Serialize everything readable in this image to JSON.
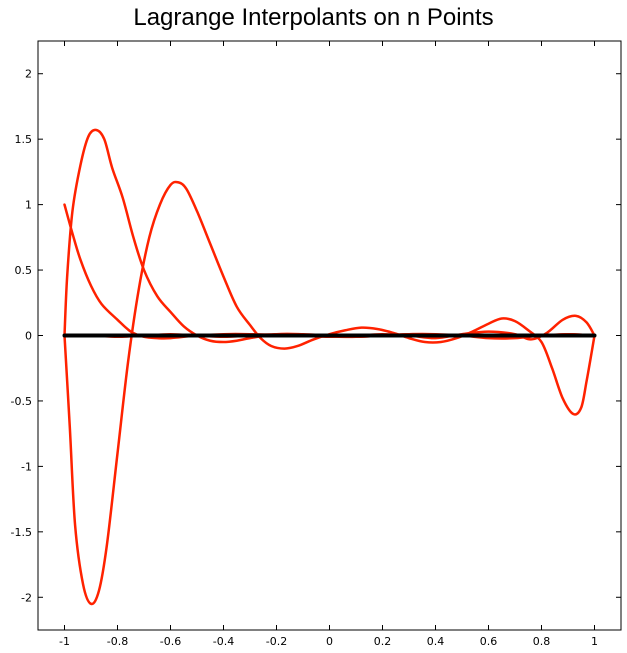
{
  "chart_data": {
    "type": "line",
    "title": "Lagrange Interpolants on n Points",
    "xlabel": "",
    "ylabel": "",
    "xlim": [
      -1.1,
      1.1
    ],
    "ylim": [
      -2.25,
      2.25
    ],
    "grid": false,
    "legend": "none",
    "x_ticks": [
      -1,
      -0.8,
      -0.6,
      -0.4,
      -0.2,
      0,
      0.2,
      0.4,
      0.6,
      0.8,
      1
    ],
    "x_tick_labels": [
      "-1",
      "-0.8",
      "-0.6",
      "-0.4",
      "-0.2",
      "0",
      "0.2",
      "0.4",
      "0.6",
      "0.8",
      "1"
    ],
    "y_ticks": [
      2,
      1.5,
      1,
      0.5,
      0,
      -0.5,
      -1,
      -1.5,
      -2
    ],
    "y_tick_labels": [
      "2",
      "1.5",
      "1",
      "0.5",
      "0",
      "-0.5",
      "-1",
      "-1.5",
      "-2"
    ],
    "series": [
      {
        "color": "#ff2200",
        "points": [
          [
            -1,
            1
          ],
          [
            -0.97,
            0.78
          ],
          [
            -0.94,
            0.58
          ],
          [
            -0.9,
            0.38
          ],
          [
            -0.86,
            0.24
          ],
          [
            -0.8,
            0.12
          ],
          [
            -0.75,
            0.03
          ],
          [
            -0.7,
            -0.01
          ],
          [
            -0.65,
            -0.02
          ],
          [
            -0.6,
            -0.02
          ],
          [
            -0.5,
            0
          ],
          [
            -0.4,
            0.01
          ],
          [
            -0.3,
            0.01
          ],
          [
            -0.1,
            0
          ],
          [
            0.1,
            -0.01
          ],
          [
            0.3,
            0.01
          ],
          [
            0.5,
            0
          ],
          [
            0.7,
            -0.01
          ],
          [
            0.8,
            0
          ],
          [
            0.9,
            0.01
          ],
          [
            1,
            0
          ]
        ]
      },
      {
        "color": "#ff2200",
        "points": [
          [
            -1,
            0
          ],
          [
            -0.99,
            0.45
          ],
          [
            -0.97,
            0.95
          ],
          [
            -0.94,
            1.3
          ],
          [
            -0.91,
            1.52
          ],
          [
            -0.88,
            1.57
          ],
          [
            -0.85,
            1.5
          ],
          [
            -0.82,
            1.28
          ],
          [
            -0.78,
            1.05
          ],
          [
            -0.74,
            0.75
          ],
          [
            -0.7,
            0.5
          ],
          [
            -0.65,
            0.3
          ],
          [
            -0.6,
            0.18
          ],
          [
            -0.55,
            0.07
          ],
          [
            -0.5,
            0
          ],
          [
            -0.45,
            -0.04
          ],
          [
            -0.4,
            -0.05
          ],
          [
            -0.35,
            -0.04
          ],
          [
            -0.3,
            -0.02
          ],
          [
            -0.2,
            0.01
          ],
          [
            -0.1,
            0.01
          ],
          [
            0,
            0
          ],
          [
            0.1,
            -0.01
          ],
          [
            0.2,
            0
          ],
          [
            0.3,
            0.01
          ],
          [
            0.4,
            0.01
          ],
          [
            0.5,
            0
          ],
          [
            0.6,
            -0.02
          ],
          [
            0.7,
            -0.02
          ],
          [
            0.8,
            0
          ],
          [
            0.9,
            0.01
          ],
          [
            1,
            0
          ]
        ]
      },
      {
        "color": "#ff2200",
        "points": [
          [
            -1,
            0
          ],
          [
            -0.98,
            -0.7
          ],
          [
            -0.96,
            -1.45
          ],
          [
            -0.93,
            -1.9
          ],
          [
            -0.9,
            -2.05
          ],
          [
            -0.87,
            -1.95
          ],
          [
            -0.84,
            -1.6
          ],
          [
            -0.8,
            -0.9
          ],
          [
            -0.76,
            -0.2
          ],
          [
            -0.72,
            0.35
          ],
          [
            -0.68,
            0.75
          ],
          [
            -0.64,
            1.0
          ],
          [
            -0.6,
            1.15
          ],
          [
            -0.57,
            1.17
          ],
          [
            -0.54,
            1.12
          ],
          [
            -0.5,
            0.95
          ],
          [
            -0.45,
            0.7
          ],
          [
            -0.4,
            0.45
          ],
          [
            -0.35,
            0.22
          ],
          [
            -0.3,
            0.08
          ],
          [
            -0.26,
            -0.02
          ],
          [
            -0.22,
            -0.08
          ],
          [
            -0.17,
            -0.1
          ],
          [
            -0.12,
            -0.08
          ],
          [
            -0.06,
            -0.03
          ],
          [
            0,
            0.01
          ],
          [
            0.06,
            0.04
          ],
          [
            0.12,
            0.06
          ],
          [
            0.18,
            0.05
          ],
          [
            0.24,
            0.02
          ],
          [
            0.3,
            -0.02
          ],
          [
            0.36,
            -0.05
          ],
          [
            0.42,
            -0.05
          ],
          [
            0.48,
            -0.02
          ],
          [
            0.54,
            0.03
          ],
          [
            0.6,
            0.09
          ],
          [
            0.65,
            0.13
          ],
          [
            0.7,
            0.11
          ],
          [
            0.75,
            0.04
          ],
          [
            0.8,
            -0.05
          ],
          [
            0.84,
            -0.25
          ],
          [
            0.88,
            -0.48
          ],
          [
            0.92,
            -0.6
          ],
          [
            0.95,
            -0.55
          ],
          [
            0.97,
            -0.35
          ],
          [
            0.99,
            -0.12
          ],
          [
            1,
            0
          ]
        ]
      },
      {
        "color": "#ff2200",
        "points": [
          [
            -1,
            0
          ],
          [
            -0.9,
            0
          ],
          [
            -0.8,
            -0.01
          ],
          [
            -0.7,
            0
          ],
          [
            -0.6,
            0.01
          ],
          [
            -0.5,
            0
          ],
          [
            -0.4,
            -0.01
          ],
          [
            -0.3,
            0
          ],
          [
            -0.2,
            0.01
          ],
          [
            -0.1,
            0
          ],
          [
            0,
            -0.01
          ],
          [
            0.1,
            0
          ],
          [
            0.2,
            0.01
          ],
          [
            0.3,
            0
          ],
          [
            0.4,
            -0.02
          ],
          [
            0.5,
            0.01
          ],
          [
            0.6,
            0.03
          ],
          [
            0.7,
            0.01
          ],
          [
            0.76,
            -0.03
          ],
          [
            0.82,
            0.02
          ],
          [
            0.88,
            0.12
          ],
          [
            0.93,
            0.15
          ],
          [
            0.97,
            0.1
          ],
          [
            1,
            0
          ]
        ]
      },
      {
        "color": "#000000",
        "width": 4,
        "points": [
          [
            -1,
            0
          ],
          [
            1,
            0
          ]
        ]
      }
    ]
  }
}
